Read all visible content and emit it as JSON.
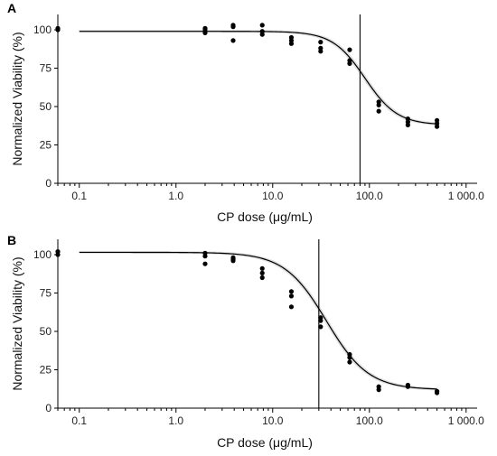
{
  "chart_data": [
    {
      "panel_label": "A",
      "type": "scatter",
      "xlabel": "CP dose (μg/mL)",
      "ylabel": "Normalized Viability (%)",
      "x_scale": "log",
      "xlim": [
        0.06,
        1300
      ],
      "ylim": [
        0,
        110
      ],
      "x_ticks": [
        0.1,
        1.0,
        10.0,
        100.0,
        1000.0
      ],
      "x_tick_labels": [
        "0.1",
        "1.0",
        "10.0",
        "100.0",
        "1 000.0"
      ],
      "y_ticks": [
        0,
        25,
        50,
        75,
        100
      ],
      "y_tick_labels": [
        "0",
        "25",
        "50",
        "75",
        "100"
      ],
      "grid": false,
      "legend": "none",
      "ic50": 80,
      "fit": {
        "top": 99,
        "bottom": 38,
        "ic50": 90,
        "hill": 2.6,
        "x_range": [
          0.1,
          500
        ]
      },
      "points": [
        {
          "x": 0.06,
          "y": 100
        },
        {
          "x": 0.06,
          "y": 101
        },
        {
          "x": 2,
          "y": 98
        },
        {
          "x": 2,
          "y": 100
        },
        {
          "x": 2,
          "y": 101
        },
        {
          "x": 3.9,
          "y": 93
        },
        {
          "x": 3.9,
          "y": 102
        },
        {
          "x": 3.9,
          "y": 103
        },
        {
          "x": 7.8,
          "y": 97
        },
        {
          "x": 7.8,
          "y": 99
        },
        {
          "x": 7.8,
          "y": 103
        },
        {
          "x": 15.6,
          "y": 91
        },
        {
          "x": 15.6,
          "y": 93
        },
        {
          "x": 15.6,
          "y": 95
        },
        {
          "x": 31.3,
          "y": 86
        },
        {
          "x": 31.3,
          "y": 88
        },
        {
          "x": 31.3,
          "y": 92
        },
        {
          "x": 62.5,
          "y": 78
        },
        {
          "x": 62.5,
          "y": 80
        },
        {
          "x": 62.5,
          "y": 87
        },
        {
          "x": 125,
          "y": 47
        },
        {
          "x": 125,
          "y": 51
        },
        {
          "x": 125,
          "y": 53
        },
        {
          "x": 250,
          "y": 38
        },
        {
          "x": 250,
          "y": 40
        },
        {
          "x": 250,
          "y": 42
        },
        {
          "x": 500,
          "y": 37
        },
        {
          "x": 500,
          "y": 39
        },
        {
          "x": 500,
          "y": 41
        }
      ]
    },
    {
      "panel_label": "B",
      "type": "scatter",
      "xlabel": "CP dose (μg/mL)",
      "ylabel": "Normalized Viability (%)",
      "x_scale": "log",
      "xlim": [
        0.06,
        1300
      ],
      "ylim": [
        0,
        110
      ],
      "x_ticks": [
        0.1,
        1.0,
        10.0,
        100.0,
        1000.0
      ],
      "x_tick_labels": [
        "0.1",
        "1.0",
        "10.0",
        "100.0",
        "1 000.0"
      ],
      "y_ticks": [
        0,
        25,
        50,
        75,
        100
      ],
      "y_tick_labels": [
        "0",
        "25",
        "50",
        "75",
        "100"
      ],
      "grid": false,
      "legend": "none",
      "ic50": 30,
      "fit": {
        "top": 101.5,
        "bottom": 12,
        "ic50": 36,
        "hill": 2.0,
        "x_range": [
          0.1,
          500
        ]
      },
      "points": [
        {
          "x": 0.06,
          "y": 100
        },
        {
          "x": 0.06,
          "y": 102
        },
        {
          "x": 2,
          "y": 94
        },
        {
          "x": 2,
          "y": 99
        },
        {
          "x": 2,
          "y": 101
        },
        {
          "x": 3.9,
          "y": 96
        },
        {
          "x": 3.9,
          "y": 97
        },
        {
          "x": 3.9,
          "y": 98
        },
        {
          "x": 7.8,
          "y": 85
        },
        {
          "x": 7.8,
          "y": 88
        },
        {
          "x": 7.8,
          "y": 91
        },
        {
          "x": 15.6,
          "y": 66
        },
        {
          "x": 15.6,
          "y": 73
        },
        {
          "x": 15.6,
          "y": 76
        },
        {
          "x": 31.3,
          "y": 53
        },
        {
          "x": 31.3,
          "y": 57
        },
        {
          "x": 31.3,
          "y": 59
        },
        {
          "x": 62.5,
          "y": 30
        },
        {
          "x": 62.5,
          "y": 33
        },
        {
          "x": 62.5,
          "y": 35
        },
        {
          "x": 125,
          "y": 12
        },
        {
          "x": 125,
          "y": 14
        },
        {
          "x": 250,
          "y": 14
        },
        {
          "x": 250,
          "y": 15
        },
        {
          "x": 500,
          "y": 10
        },
        {
          "x": 500,
          "y": 11
        }
      ]
    }
  ]
}
